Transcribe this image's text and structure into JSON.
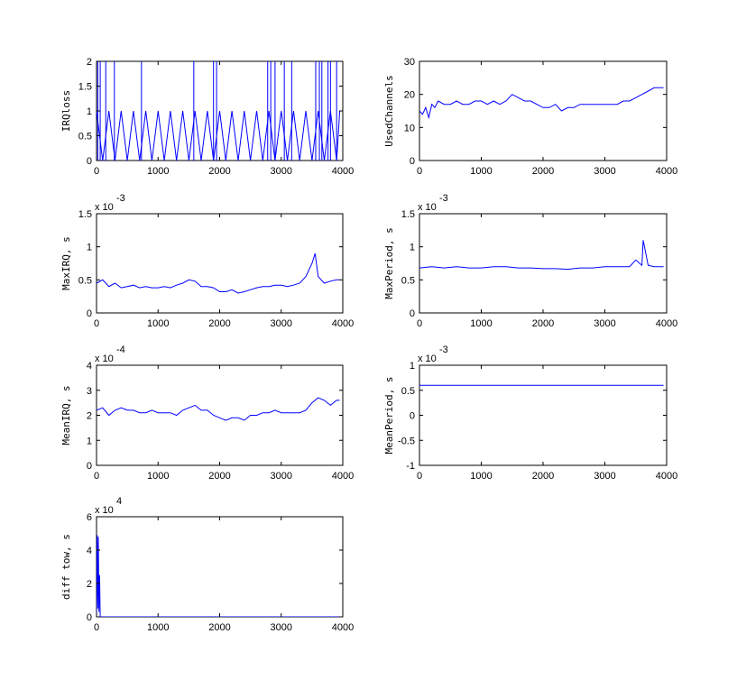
{
  "chart_data": [
    {
      "type": "line",
      "ylabel": "IRQloss",
      "multiplier": null,
      "xlim": [
        0,
        4000
      ],
      "ylim": [
        0,
        2
      ],
      "xticks": [
        "0",
        "1000",
        "2000",
        "3000",
        "4000"
      ],
      "yticks": [
        "0",
        "0.5",
        "1",
        "1.5",
        "2"
      ],
      "color": "#0000ff",
      "x": [
        0,
        100,
        200,
        300,
        400,
        500,
        600,
        700,
        800,
        900,
        1000,
        1100,
        1200,
        1300,
        1400,
        1500,
        1600,
        1700,
        1800,
        1900,
        2000,
        2100,
        2200,
        2300,
        2400,
        2500,
        2600,
        2700,
        2800,
        2900,
        3000,
        3100,
        3200,
        3300,
        3400,
        3500,
        3600,
        3700,
        3800,
        3900,
        3950
      ],
      "values": [
        1,
        0,
        1,
        0,
        1,
        0,
        1,
        0,
        1,
        0,
        1,
        0,
        1,
        0,
        1,
        0,
        1,
        0,
        1,
        0,
        1,
        0,
        1,
        0,
        1,
        0,
        1,
        0,
        1,
        0,
        1,
        0,
        1,
        0,
        1,
        0,
        1,
        0,
        1,
        0,
        1
      ],
      "spikes": [
        {
          "x": 20,
          "value": 2
        },
        {
          "x": 60,
          "value": 2
        },
        {
          "x": 150,
          "value": 2
        },
        {
          "x": 290,
          "value": 2
        },
        {
          "x": 730,
          "value": 2
        },
        {
          "x": 1580,
          "value": 2
        },
        {
          "x": 1900,
          "value": 2
        },
        {
          "x": 1950,
          "value": 2
        },
        {
          "x": 2780,
          "value": 2
        },
        {
          "x": 2830,
          "value": 2
        },
        {
          "x": 2900,
          "value": 2
        },
        {
          "x": 3050,
          "value": 2
        },
        {
          "x": 3170,
          "value": 2
        },
        {
          "x": 3560,
          "value": 2
        },
        {
          "x": 3620,
          "value": 2
        },
        {
          "x": 3660,
          "value": 2
        },
        {
          "x": 3760,
          "value": 2
        },
        {
          "x": 3800,
          "value": 2
        },
        {
          "x": 3900,
          "value": 2
        }
      ]
    },
    {
      "type": "line",
      "ylabel": "UsedChannels",
      "multiplier": null,
      "xlim": [
        0,
        4000
      ],
      "ylim": [
        0,
        30
      ],
      "xticks": [
        "0",
        "1000",
        "2000",
        "3000",
        "4000"
      ],
      "yticks": [
        "0",
        "10",
        "20",
        "30"
      ],
      "color": "#0000ff",
      "x": [
        0,
        50,
        100,
        150,
        200,
        250,
        300,
        400,
        500,
        600,
        700,
        800,
        900,
        1000,
        1100,
        1200,
        1300,
        1400,
        1500,
        1600,
        1700,
        1800,
        1900,
        2000,
        2100,
        2200,
        2300,
        2400,
        2500,
        2600,
        2700,
        2800,
        2900,
        3000,
        3100,
        3200,
        3300,
        3400,
        3500,
        3600,
        3700,
        3800,
        3900,
        3950
      ],
      "values": [
        15,
        14,
        16,
        13,
        17,
        16,
        18,
        17,
        17,
        18,
        17,
        17,
        18,
        18,
        17,
        18,
        17,
        18,
        20,
        19,
        18,
        18,
        17,
        16,
        16,
        17,
        15,
        16,
        16,
        17,
        17,
        17,
        17,
        17,
        17,
        17,
        18,
        18,
        19,
        20,
        21,
        22,
        22,
        22
      ]
    },
    {
      "type": "line",
      "ylabel": "MaxIRQ, s",
      "multiplier": "x 10^-3",
      "xlim": [
        0,
        4000
      ],
      "ylim": [
        0,
        1.5
      ],
      "xticks": [
        "0",
        "1000",
        "2000",
        "3000",
        "4000"
      ],
      "yticks": [
        "0",
        "0.5",
        "1",
        "1.5"
      ],
      "color": "#0000ff",
      "x": [
        0,
        100,
        200,
        300,
        400,
        500,
        600,
        700,
        800,
        900,
        1000,
        1100,
        1200,
        1300,
        1400,
        1500,
        1600,
        1700,
        1800,
        1900,
        2000,
        2100,
        2200,
        2300,
        2400,
        2500,
        2600,
        2700,
        2800,
        2900,
        3000,
        3100,
        3200,
        3300,
        3400,
        3500,
        3550,
        3600,
        3700,
        3800,
        3900,
        3950
      ],
      "values": [
        0.45,
        0.5,
        0.4,
        0.45,
        0.38,
        0.4,
        0.42,
        0.38,
        0.4,
        0.38,
        0.38,
        0.4,
        0.38,
        0.42,
        0.45,
        0.5,
        0.48,
        0.4,
        0.4,
        0.38,
        0.32,
        0.32,
        0.35,
        0.3,
        0.32,
        0.35,
        0.38,
        0.4,
        0.4,
        0.42,
        0.42,
        0.4,
        0.42,
        0.45,
        0.55,
        0.75,
        0.9,
        0.55,
        0.45,
        0.48,
        0.5,
        0.5
      ]
    },
    {
      "type": "line",
      "ylabel": "MaxPeriod, s",
      "multiplier": "x 10^-3",
      "xlim": [
        0,
        4000
      ],
      "ylim": [
        0,
        1.5
      ],
      "xticks": [
        "0",
        "1000",
        "2000",
        "3000",
        "4000"
      ],
      "yticks": [
        "0",
        "0.5",
        "1",
        "1.5"
      ],
      "color": "#0000ff",
      "x": [
        0,
        200,
        400,
        600,
        800,
        1000,
        1200,
        1400,
        1600,
        1800,
        2000,
        2200,
        2400,
        2600,
        2800,
        3000,
        3200,
        3400,
        3500,
        3600,
        3620,
        3700,
        3800,
        3900,
        3950
      ],
      "values": [
        0.68,
        0.7,
        0.68,
        0.7,
        0.68,
        0.68,
        0.7,
        0.7,
        0.68,
        0.68,
        0.67,
        0.67,
        0.66,
        0.68,
        0.68,
        0.7,
        0.7,
        0.7,
        0.8,
        0.72,
        1.1,
        0.72,
        0.7,
        0.7,
        0.7
      ]
    },
    {
      "type": "line",
      "ylabel": "MeanIRQ, s",
      "multiplier": "x 10^-4",
      "xlim": [
        0,
        4000
      ],
      "ylim": [
        0,
        4
      ],
      "xticks": [
        "0",
        "1000",
        "2000",
        "3000",
        "4000"
      ],
      "yticks": [
        "0",
        "1",
        "2",
        "3",
        "4"
      ],
      "color": "#0000ff",
      "x": [
        0,
        100,
        200,
        300,
        400,
        500,
        600,
        700,
        800,
        900,
        1000,
        1100,
        1200,
        1300,
        1400,
        1500,
        1600,
        1700,
        1800,
        1900,
        2000,
        2100,
        2200,
        2300,
        2400,
        2500,
        2600,
        2700,
        2800,
        2900,
        3000,
        3100,
        3200,
        3300,
        3400,
        3500,
        3600,
        3700,
        3800,
        3900,
        3950
      ],
      "values": [
        2.2,
        2.3,
        2.0,
        2.2,
        2.3,
        2.2,
        2.2,
        2.1,
        2.1,
        2.2,
        2.1,
        2.1,
        2.1,
        2.0,
        2.2,
        2.3,
        2.4,
        2.2,
        2.2,
        2.0,
        1.9,
        1.8,
        1.9,
        1.9,
        1.8,
        2.0,
        2.0,
        2.1,
        2.1,
        2.2,
        2.1,
        2.1,
        2.1,
        2.1,
        2.2,
        2.5,
        2.7,
        2.6,
        2.4,
        2.6,
        2.6
      ]
    },
    {
      "type": "line",
      "ylabel": "MeanPeriod, s",
      "multiplier": "x 10^-3",
      "xlim": [
        0,
        4000
      ],
      "ylim": [
        -1,
        1
      ],
      "xticks": [
        "0",
        "1000",
        "2000",
        "3000",
        "4000"
      ],
      "yticks": [
        "-1",
        "-0.5",
        "0",
        "0.5",
        "1"
      ],
      "color": "#0000ff",
      "x": [
        0,
        3950
      ],
      "values": [
        0.6,
        0.6
      ]
    },
    {
      "type": "line",
      "ylabel": "diff tow, s",
      "multiplier": "x 10^4",
      "xlim": [
        0,
        4000
      ],
      "ylim": [
        0,
        6
      ],
      "xticks": [
        "0",
        "1000",
        "2000",
        "3000",
        "4000"
      ],
      "yticks": [
        "0",
        "2",
        "4",
        "6"
      ],
      "color": "#0000ff",
      "x": [
        0,
        10,
        20,
        30,
        40,
        50,
        60,
        100,
        3950
      ],
      "values": [
        0,
        4.9,
        0.5,
        4.8,
        0.3,
        2.5,
        0,
        0,
        0
      ]
    }
  ]
}
